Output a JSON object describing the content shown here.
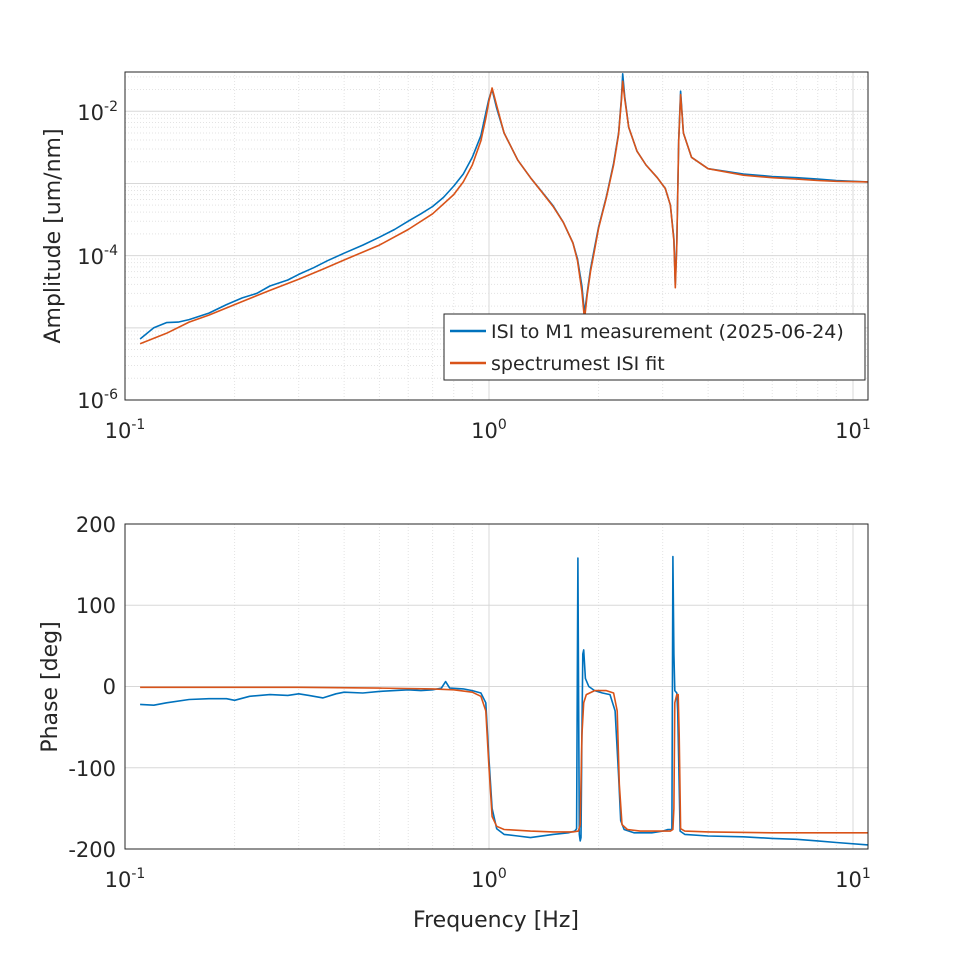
{
  "colors": {
    "measurement": "#0072BD",
    "fit": "#D95319",
    "axis": "#262626",
    "grid_major": "#d8d8d8",
    "grid_minor": "#e3e3e3"
  },
  "chart_data": [
    {
      "type": "line",
      "panel": "amplitude",
      "xscale": "log",
      "yscale": "log",
      "xlim": [
        0.1,
        11
      ],
      "ylim": [
        1e-06,
        0.035
      ],
      "xlabel": "",
      "ylabel": "Amplitude [um/nm]",
      "x_ticks": [
        {
          "base": "10",
          "exp": "-1"
        },
        {
          "base": "10",
          "exp": "0"
        },
        {
          "base": "10",
          "exp": "1"
        }
      ],
      "y_ticks": [
        {
          "base": "10",
          "exp": "-6"
        },
        {
          "base": "10",
          "exp": "-4"
        },
        {
          "base": "10",
          "exp": "-2"
        }
      ],
      "grid": true,
      "legend": {
        "placement": "bottom-right",
        "entries": [
          "ISI to M1 measurement (2025-06-24)",
          "spectrumest ISI fit"
        ]
      },
      "series": [
        {
          "name": "ISI to M1 measurement (2025-06-24)",
          "color": "#0072BD",
          "points": [
            [
              0.11,
              7e-06
            ],
            [
              0.12,
              1e-05
            ],
            [
              0.13,
              1.18e-05
            ],
            [
              0.14,
              1.2e-05
            ],
            [
              0.15,
              1.3e-05
            ],
            [
              0.17,
              1.6e-05
            ],
            [
              0.19,
              2.1e-05
            ],
            [
              0.21,
              2.6e-05
            ],
            [
              0.23,
              3e-05
            ],
            [
              0.25,
              3.8e-05
            ],
            [
              0.28,
              4.6e-05
            ],
            [
              0.3,
              5.5e-05
            ],
            [
              0.33,
              6.8e-05
            ],
            [
              0.36,
              8.5e-05
            ],
            [
              0.4,
              0.000108
            ],
            [
              0.45,
              0.00014
            ],
            [
              0.5,
              0.00018
            ],
            [
              0.55,
              0.00023
            ],
            [
              0.6,
              0.0003
            ],
            [
              0.65,
              0.00038
            ],
            [
              0.7,
              0.00048
            ],
            [
              0.75,
              0.00064
            ],
            [
              0.8,
              0.00092
            ],
            [
              0.85,
              0.00135
            ],
            [
              0.9,
              0.0023
            ],
            [
              0.95,
              0.0046
            ],
            [
              0.98,
              0.0095
            ],
            [
              1.0,
              0.015
            ],
            [
              1.02,
              0.02
            ],
            [
              1.05,
              0.011
            ],
            [
              1.1,
              0.005
            ],
            [
              1.2,
              0.0021
            ],
            [
              1.3,
              0.0012
            ],
            [
              1.4,
              0.00076
            ],
            [
              1.5,
              0.00049
            ],
            [
              1.6,
              0.00029
            ],
            [
              1.7,
              0.00015
            ],
            [
              1.75,
              9e-05
            ],
            [
              1.8,
              3.8e-05
            ],
            [
              1.83,
              1.6e-05
            ],
            [
              1.86,
              3e-05
            ],
            [
              1.9,
              6.5e-05
            ],
            [
              1.95,
              0.00013
            ],
            [
              2.0,
              0.00025
            ],
            [
              2.1,
              0.00065
            ],
            [
              2.2,
              0.0019
            ],
            [
              2.27,
              0.005
            ],
            [
              2.31,
              0.015
            ],
            [
              2.33,
              0.033
            ],
            [
              2.36,
              0.016
            ],
            [
              2.42,
              0.006
            ],
            [
              2.55,
              0.0028
            ],
            [
              2.7,
              0.0018
            ],
            [
              2.9,
              0.0012
            ],
            [
              3.05,
              0.00085
            ],
            [
              3.15,
              0.0005
            ],
            [
              3.22,
              0.00017
            ],
            [
              3.25,
              4e-05
            ],
            [
              3.28,
              0.00015
            ],
            [
              3.32,
              0.004
            ],
            [
              3.36,
              0.019
            ],
            [
              3.42,
              0.005
            ],
            [
              3.6,
              0.0023
            ],
            [
              4.0,
              0.0016
            ],
            [
              5.0,
              0.00135
            ],
            [
              6.0,
              0.00125
            ],
            [
              7.0,
              0.0012
            ],
            [
              8.0,
              0.00115
            ],
            [
              9.0,
              0.0011
            ],
            [
              11.0,
              0.00105
            ]
          ]
        },
        {
          "name": "spectrumest ISI fit",
          "color": "#D95319",
          "points": [
            [
              0.11,
              6e-06
            ],
            [
              0.13,
              8.4e-06
            ],
            [
              0.15,
              1.2e-05
            ],
            [
              0.17,
              1.5e-05
            ],
            [
              0.2,
              2.1e-05
            ],
            [
              0.25,
              3.3e-05
            ],
            [
              0.3,
              4.7e-05
            ],
            [
              0.35,
              6.5e-05
            ],
            [
              0.4,
              8.7e-05
            ],
            [
              0.45,
              0.000112
            ],
            [
              0.5,
              0.00014
            ],
            [
              0.6,
              0.00023
            ],
            [
              0.7,
              0.00038
            ],
            [
              0.8,
              0.0007
            ],
            [
              0.85,
              0.00105
            ],
            [
              0.9,
              0.0018
            ],
            [
              0.95,
              0.0039
            ],
            [
              0.98,
              0.008
            ],
            [
              1.0,
              0.014
            ],
            [
              1.02,
              0.021
            ],
            [
              1.05,
              0.012
            ],
            [
              1.1,
              0.005
            ],
            [
              1.2,
              0.0021
            ],
            [
              1.3,
              0.0012
            ],
            [
              1.4,
              0.00075
            ],
            [
              1.5,
              0.00048
            ],
            [
              1.6,
              0.00029
            ],
            [
              1.7,
              0.00015
            ],
            [
              1.75,
              8.5e-05
            ],
            [
              1.8,
              3.2e-05
            ],
            [
              1.83,
              1.3e-05
            ],
            [
              1.86,
              2.8e-05
            ],
            [
              1.9,
              6e-05
            ],
            [
              1.95,
              0.00012
            ],
            [
              2.0,
              0.00024
            ],
            [
              2.1,
              0.00063
            ],
            [
              2.2,
              0.0018
            ],
            [
              2.27,
              0.0048
            ],
            [
              2.31,
              0.014
            ],
            [
              2.33,
              0.026
            ],
            [
              2.36,
              0.015
            ],
            [
              2.42,
              0.006
            ],
            [
              2.55,
              0.0028
            ],
            [
              2.7,
              0.0018
            ],
            [
              2.9,
              0.0012
            ],
            [
              3.05,
              0.00085
            ],
            [
              3.15,
              0.0005
            ],
            [
              3.22,
              0.00016
            ],
            [
              3.25,
              3.6e-05
            ],
            [
              3.28,
              0.00014
            ],
            [
              3.32,
              0.0038
            ],
            [
              3.36,
              0.017
            ],
            [
              3.42,
              0.005
            ],
            [
              3.6,
              0.0023
            ],
            [
              4.0,
              0.0016
            ],
            [
              5.0,
              0.0013
            ],
            [
              6.0,
              0.0012
            ],
            [
              7.0,
              0.00115
            ],
            [
              8.0,
              0.0011
            ],
            [
              9.0,
              0.00107
            ],
            [
              11.0,
              0.00105
            ]
          ]
        }
      ]
    },
    {
      "type": "line",
      "panel": "phase",
      "xscale": "log",
      "yscale": "linear",
      "xlim": [
        0.1,
        11
      ],
      "ylim": [
        -200,
        200
      ],
      "xlabel": "Frequency [Hz]",
      "ylabel": "Phase [deg]",
      "x_ticks": [
        {
          "base": "10",
          "exp": "-1"
        },
        {
          "base": "10",
          "exp": "0"
        },
        {
          "base": "10",
          "exp": "1"
        }
      ],
      "y_ticks": [
        "-200",
        "-100",
        "0",
        "100",
        "200"
      ],
      "y_tick_values": [
        -200,
        -100,
        0,
        100,
        200
      ],
      "grid": true,
      "series": [
        {
          "name": "ISI to M1 measurement (2025-06-24)",
          "color": "#0072BD",
          "points": [
            [
              0.11,
              -22
            ],
            [
              0.12,
              -23
            ],
            [
              0.13,
              -20
            ],
            [
              0.15,
              -16
            ],
            [
              0.17,
              -15
            ],
            [
              0.19,
              -15
            ],
            [
              0.2,
              -17
            ],
            [
              0.22,
              -12
            ],
            [
              0.25,
              -10
            ],
            [
              0.28,
              -11
            ],
            [
              0.3,
              -9
            ],
            [
              0.32,
              -11
            ],
            [
              0.35,
              -14
            ],
            [
              0.38,
              -9
            ],
            [
              0.4,
              -7
            ],
            [
              0.45,
              -8
            ],
            [
              0.5,
              -6
            ],
            [
              0.55,
              -5
            ],
            [
              0.6,
              -4
            ],
            [
              0.65,
              -5
            ],
            [
              0.7,
              -4
            ],
            [
              0.74,
              -2
            ],
            [
              0.76,
              6
            ],
            [
              0.78,
              -2
            ],
            [
              0.85,
              -3
            ],
            [
              0.9,
              -5
            ],
            [
              0.95,
              -8
            ],
            [
              0.98,
              -20
            ],
            [
              1.0,
              -90
            ],
            [
              1.02,
              -150
            ],
            [
              1.05,
              -175
            ],
            [
              1.1,
              -182
            ],
            [
              1.2,
              -184
            ],
            [
              1.3,
              -186
            ],
            [
              1.5,
              -182
            ],
            [
              1.65,
              -180
            ],
            [
              1.72,
              -178
            ],
            [
              1.74,
              -175
            ],
            [
              1.755,
              158
            ],
            [
              1.77,
              -182
            ],
            [
              1.78,
              -190
            ],
            [
              1.79,
              -186
            ],
            [
              1.8,
              -60
            ],
            [
              1.81,
              40
            ],
            [
              1.82,
              45
            ],
            [
              1.84,
              10
            ],
            [
              1.88,
              0
            ],
            [
              1.95,
              -5
            ],
            [
              2.05,
              -8
            ],
            [
              2.15,
              -10
            ],
            [
              2.22,
              -30
            ],
            [
              2.27,
              -110
            ],
            [
              2.3,
              -165
            ],
            [
              2.35,
              -176
            ],
            [
              2.5,
              -180
            ],
            [
              2.8,
              -180
            ],
            [
              3.0,
              -178
            ],
            [
              3.1,
              -176
            ],
            [
              3.18,
              -176
            ],
            [
              3.2,
              160
            ],
            [
              3.22,
              40
            ],
            [
              3.24,
              -5
            ],
            [
              3.28,
              -8
            ],
            [
              3.3,
              -30
            ],
            [
              3.35,
              -178
            ],
            [
              3.45,
              -182
            ],
            [
              4.0,
              -184
            ],
            [
              5.0,
              -185
            ],
            [
              6.0,
              -187
            ],
            [
              7.0,
              -188
            ],
            [
              8.0,
              -190
            ],
            [
              9.0,
              -192
            ],
            [
              11.0,
              -195
            ]
          ]
        },
        {
          "name": "spectrumest ISI fit",
          "color": "#D95319",
          "points": [
            [
              0.11,
              -1
            ],
            [
              0.3,
              -1
            ],
            [
              0.5,
              -2
            ],
            [
              0.7,
              -3
            ],
            [
              0.8,
              -4
            ],
            [
              0.9,
              -7
            ],
            [
              0.95,
              -12
            ],
            [
              0.98,
              -30
            ],
            [
              1.0,
              -100
            ],
            [
              1.02,
              -160
            ],
            [
              1.05,
              -172
            ],
            [
              1.1,
              -176
            ],
            [
              1.3,
              -178
            ],
            [
              1.5,
              -179
            ],
            [
              1.7,
              -179
            ],
            [
              1.76,
              -178
            ],
            [
              1.78,
              -170
            ],
            [
              1.8,
              -60
            ],
            [
              1.82,
              -20
            ],
            [
              1.85,
              -10
            ],
            [
              1.95,
              -5
            ],
            [
              2.1,
              -5
            ],
            [
              2.2,
              -8
            ],
            [
              2.25,
              -30
            ],
            [
              2.28,
              -120
            ],
            [
              2.32,
              -170
            ],
            [
              2.4,
              -176
            ],
            [
              2.6,
              -178
            ],
            [
              3.0,
              -178
            ],
            [
              3.15,
              -178
            ],
            [
              3.2,
              -176
            ],
            [
              3.22,
              -150
            ],
            [
              3.24,
              -20
            ],
            [
              3.28,
              -10
            ],
            [
              3.31,
              -10
            ],
            [
              3.33,
              -60
            ],
            [
              3.36,
              -175
            ],
            [
              3.45,
              -178
            ],
            [
              4.0,
              -179
            ],
            [
              6.0,
              -180
            ],
            [
              8.0,
              -180
            ],
            [
              11.0,
              -180
            ]
          ]
        }
      ]
    }
  ]
}
